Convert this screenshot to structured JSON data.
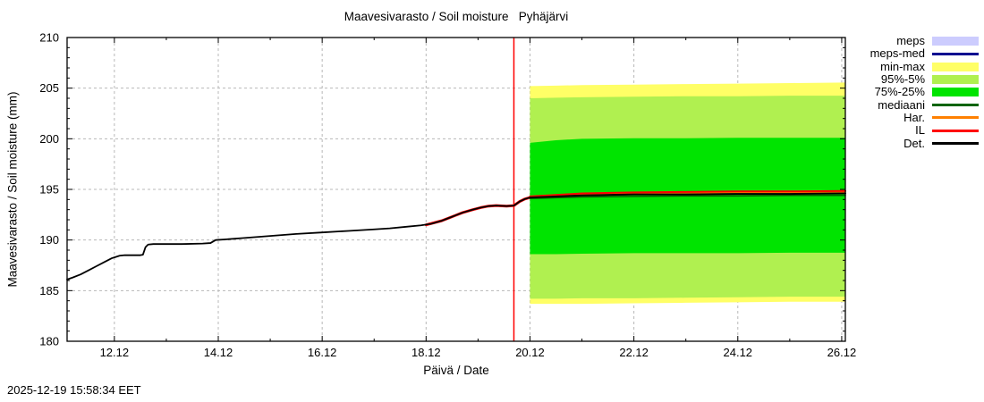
{
  "timestamp": "2025-12-19 15:58:34 EET",
  "legend": {
    "items": [
      {
        "label": "meps",
        "type": "band",
        "color": "#ccccfe"
      },
      {
        "label": "meps-med",
        "type": "line",
        "color": "#000090"
      },
      {
        "label": "min-max",
        "type": "band",
        "color": "#ffff66"
      },
      {
        "label": "95%-5%",
        "type": "band",
        "color": "#b0f050"
      },
      {
        "label": "75%-25%",
        "type": "band",
        "color": "#00e400"
      },
      {
        "label": "mediaani",
        "type": "line",
        "color": "#006400"
      },
      {
        "label": "Har.",
        "type": "line",
        "color": "#ff8000"
      },
      {
        "label": "IL",
        "type": "line",
        "color": "#ff0000"
      },
      {
        "label": "Det.",
        "type": "line",
        "color": "#000000"
      }
    ]
  },
  "chart_data": {
    "type": "line",
    "title": "Maavesivarasto / Soil moisture   Pyhäjärvi",
    "xlabel": "Päivä / Date",
    "ylabel": "Maavesivarasto / Soil moisture (mm)",
    "x_domain": [
      11.09,
      26.07
    ],
    "y_domain": [
      180,
      210
    ],
    "x_major_ticks": [
      {
        "v": 12,
        "label": "12.12"
      },
      {
        "v": 14,
        "label": "14.12"
      },
      {
        "v": 16,
        "label": "16.12"
      },
      {
        "v": 18,
        "label": "18.12"
      },
      {
        "v": 20,
        "label": "20.12"
      },
      {
        "v": 22,
        "label": "22.12"
      },
      {
        "v": 24,
        "label": "24.12"
      },
      {
        "v": 26,
        "label": "26.12"
      }
    ],
    "x_minor_ticks": [
      13,
      15,
      17,
      19,
      21,
      23,
      25
    ],
    "y_major_ticks": [
      {
        "v": 180,
        "label": "180"
      },
      {
        "v": 185,
        "label": "185"
      },
      {
        "v": 190,
        "label": "190"
      },
      {
        "v": 195,
        "label": "195"
      },
      {
        "v": 200,
        "label": "200"
      },
      {
        "v": 205,
        "label": "205"
      },
      {
        "v": 210,
        "label": "210"
      }
    ],
    "y_minor_ticks": [
      181,
      182,
      183,
      184,
      186,
      187,
      188,
      189,
      191,
      192,
      193,
      194,
      196,
      197,
      198,
      199,
      201,
      202,
      203,
      204,
      206,
      207,
      208,
      209
    ],
    "grid_x": [
      12,
      14,
      16,
      18,
      20,
      22,
      24,
      26
    ],
    "grid_y": [
      185,
      190,
      195,
      200,
      205
    ],
    "grid_color": "#b8b8b8",
    "forecast_line": {
      "x": 19.69,
      "color": "#ff0000"
    },
    "bands": [
      {
        "name": "min-max",
        "color": "#ffff66",
        "x": [
          20,
          20.5,
          21,
          22,
          23,
          24,
          25,
          26.07
        ],
        "top": [
          205.2,
          205.25,
          205.3,
          205.35,
          205.4,
          205.45,
          205.5,
          205.55
        ],
        "bottom": [
          183.7,
          183.7,
          183.7,
          183.75,
          183.8,
          183.85,
          183.9,
          183.9
        ]
      },
      {
        "name": "95pct-5pct",
        "color": "#b0f050",
        "x": [
          20,
          20.5,
          21,
          22,
          23,
          24,
          25,
          26.07
        ],
        "top": [
          204.0,
          204.05,
          204.1,
          204.15,
          204.2,
          204.2,
          204.25,
          204.25
        ],
        "bottom": [
          184.2,
          184.2,
          184.25,
          184.25,
          184.3,
          184.35,
          184.4,
          184.4
        ]
      },
      {
        "name": "75pct-25pct",
        "color": "#00e400",
        "x": [
          20,
          20.5,
          21,
          22,
          23,
          24,
          25,
          26.07
        ],
        "top": [
          199.6,
          199.85,
          200.0,
          200.05,
          200.05,
          200.1,
          200.1,
          200.1
        ],
        "bottom": [
          188.6,
          188.6,
          188.65,
          188.7,
          188.7,
          188.7,
          188.75,
          188.75
        ]
      }
    ],
    "lines": [
      {
        "name": "IL-history",
        "color": "#ff0000",
        "width": 3,
        "points": [
          [
            18.0,
            191.5
          ],
          [
            18.3,
            191.9
          ],
          [
            18.5,
            192.3
          ],
          [
            18.7,
            192.7
          ],
          [
            18.9,
            193.0
          ],
          [
            19.05,
            193.2
          ],
          [
            19.2,
            193.35
          ],
          [
            19.35,
            193.4
          ],
          [
            19.55,
            193.35
          ],
          [
            19.69,
            193.4
          ],
          [
            19.8,
            193.8
          ],
          [
            19.9,
            194.05
          ],
          [
            20,
            194.2
          ]
        ]
      },
      {
        "name": "Det-history",
        "color": "#000000",
        "width": 1.8,
        "points": [
          [
            11.09,
            186.1
          ],
          [
            11.2,
            186.3
          ],
          [
            11.35,
            186.6
          ],
          [
            11.5,
            187.0
          ],
          [
            11.65,
            187.4
          ],
          [
            11.8,
            187.8
          ],
          [
            11.95,
            188.2
          ],
          [
            12.1,
            188.45
          ],
          [
            12.2,
            188.5
          ],
          [
            12.5,
            188.5
          ],
          [
            12.55,
            188.55
          ],
          [
            12.6,
            189.3
          ],
          [
            12.65,
            189.55
          ],
          [
            12.75,
            189.6
          ],
          [
            13.3,
            189.6
          ],
          [
            13.7,
            189.65
          ],
          [
            13.85,
            189.7
          ],
          [
            13.95,
            190.0
          ],
          [
            14.1,
            190.05
          ],
          [
            14.5,
            190.2
          ],
          [
            15.0,
            190.4
          ],
          [
            15.5,
            190.6
          ],
          [
            16.0,
            190.75
          ],
          [
            16.5,
            190.9
          ],
          [
            17.0,
            191.05
          ],
          [
            17.3,
            191.15
          ],
          [
            17.6,
            191.3
          ],
          [
            17.9,
            191.45
          ],
          [
            18.1,
            191.6
          ],
          [
            18.3,
            191.9
          ],
          [
            18.5,
            192.3
          ],
          [
            18.7,
            192.7
          ],
          [
            18.9,
            193.0
          ],
          [
            19.05,
            193.2
          ],
          [
            19.2,
            193.35
          ],
          [
            19.35,
            193.4
          ],
          [
            19.55,
            193.35
          ],
          [
            19.69,
            193.4
          ],
          [
            19.8,
            193.8
          ],
          [
            19.9,
            194.05
          ],
          [
            20,
            194.2
          ]
        ]
      },
      {
        "name": "mediaani",
        "color": "#006400",
        "width": 1.5,
        "points": [
          [
            20,
            194.1
          ],
          [
            21,
            194.25
          ],
          [
            22,
            194.3
          ],
          [
            23,
            194.35
          ],
          [
            24,
            194.35
          ],
          [
            25,
            194.4
          ],
          [
            26.07,
            194.4
          ]
        ]
      },
      {
        "name": "meps-med",
        "color": "#000090",
        "width": 1.5,
        "points": [
          [
            20,
            194.2
          ],
          [
            20.5,
            194.3
          ],
          [
            21,
            194.4
          ],
          [
            21.5,
            194.45
          ],
          [
            22,
            194.5
          ]
        ]
      },
      {
        "name": "Har",
        "color": "#ff8000",
        "width": 1.5,
        "points": [
          [
            20,
            194.25
          ],
          [
            21,
            194.5
          ],
          [
            22,
            194.6
          ],
          [
            23,
            194.65
          ],
          [
            24,
            194.7
          ],
          [
            25,
            194.7
          ],
          [
            26.07,
            194.75
          ]
        ]
      },
      {
        "name": "IL",
        "color": "#ff0000",
        "width": 2,
        "points": [
          [
            20,
            194.3
          ],
          [
            21,
            194.6
          ],
          [
            22,
            194.7
          ],
          [
            23,
            194.75
          ],
          [
            24,
            194.8
          ],
          [
            25,
            194.8
          ],
          [
            26.07,
            194.85
          ]
        ]
      },
      {
        "name": "Det",
        "color": "#000000",
        "width": 2,
        "points": [
          [
            20,
            194.2
          ],
          [
            21,
            194.4
          ],
          [
            22,
            194.5
          ],
          [
            23,
            194.5
          ],
          [
            24,
            194.55
          ],
          [
            25,
            194.55
          ],
          [
            26.07,
            194.6
          ]
        ]
      }
    ]
  }
}
